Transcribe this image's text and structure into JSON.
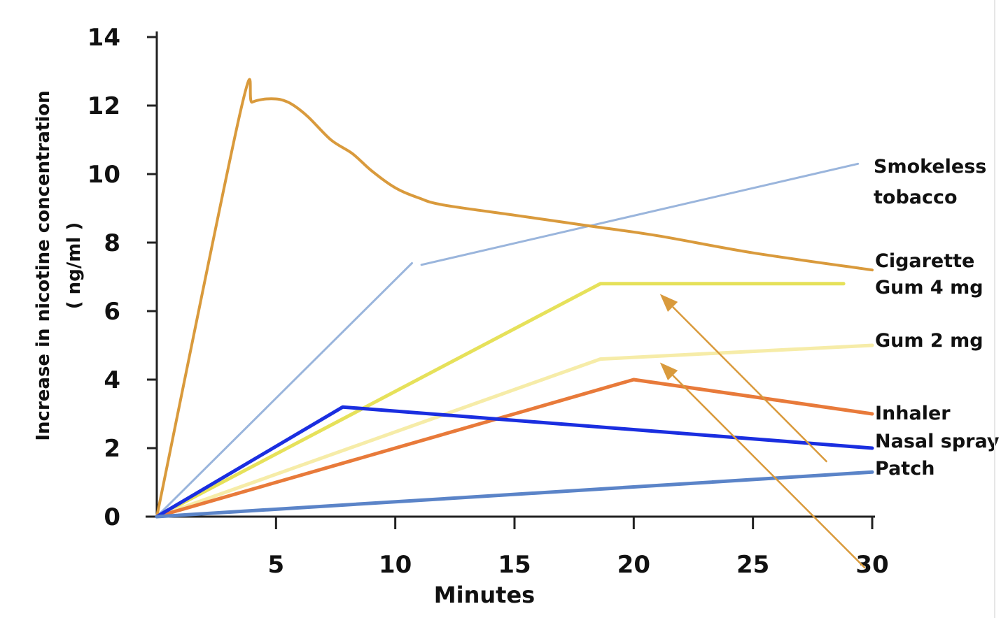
{
  "chart_data": {
    "type": "line",
    "xlabel": "Minutes",
    "ylabel": [
      "Increase in nicotine concentration",
      "( ng/ml )"
    ],
    "xlim": [
      0,
      30
    ],
    "ylim": [
      0,
      14
    ],
    "x_ticks": [
      5,
      10,
      15,
      20,
      25,
      30
    ],
    "y_ticks": [
      0,
      2,
      4,
      6,
      8,
      10,
      12,
      14
    ],
    "grid": false,
    "legend": "right, inline labels",
    "series": [
      {
        "name": "Smokeless tobacco",
        "color": "#9ab5dc",
        "segments": [
          [
            [
              0,
              0
            ],
            [
              10.7,
              7.4
            ]
          ],
          [
            [
              11.1,
              7.35
            ],
            [
              29.4,
              10.3
            ]
          ]
        ]
      },
      {
        "name": "Cigarette",
        "color": "#d99a3c",
        "points": [
          [
            0,
            0
          ],
          [
            3.5,
            11.8
          ],
          [
            4.0,
            12.1
          ],
          [
            4.8,
            12.2
          ],
          [
            5.5,
            12.1
          ],
          [
            6.3,
            11.7
          ],
          [
            7.3,
            11.0
          ],
          [
            8.2,
            10.6
          ],
          [
            9.0,
            10.1
          ],
          [
            10.0,
            9.6
          ],
          [
            11.0,
            9.3
          ],
          [
            12.0,
            9.1
          ],
          [
            15.0,
            8.8
          ],
          [
            18.0,
            8.5
          ],
          [
            21.0,
            8.2
          ],
          [
            25.0,
            7.7
          ],
          [
            30.0,
            7.2
          ]
        ]
      },
      {
        "name": "Gum 4 mg",
        "color": "#e6e15a",
        "points": [
          [
            0,
            0
          ],
          [
            18.6,
            6.8
          ],
          [
            28.8,
            6.8
          ]
        ]
      },
      {
        "name": "Gum 2 mg",
        "color": "#f6eca8",
        "points": [
          [
            0,
            0
          ],
          [
            18.6,
            4.6
          ],
          [
            30.0,
            5.0
          ]
        ]
      },
      {
        "name": "Inhaler",
        "color": "#e87a3a",
        "points": [
          [
            0,
            0
          ],
          [
            20.0,
            4.0
          ],
          [
            30.0,
            3.0
          ]
        ]
      },
      {
        "name": "Nasal spray",
        "color": "#1a2ee0",
        "points": [
          [
            0,
            0
          ],
          [
            7.8,
            3.2
          ],
          [
            30.0,
            2.0
          ]
        ]
      },
      {
        "name": "Patch",
        "color": "#5b84c8",
        "points": [
          [
            0,
            0
          ],
          [
            30.0,
            1.3
          ]
        ]
      }
    ],
    "legend_entries": [
      {
        "lines": [
          "Smokeless",
          "tobacco"
        ]
      },
      {
        "lines": [
          "Cigarette"
        ]
      },
      {
        "lines": [
          "Gum 4 mg"
        ]
      },
      {
        "lines": [
          "Gum 2 mg"
        ]
      },
      {
        "lines": [
          "Inhaler"
        ]
      },
      {
        "lines": [
          "Nasal spray"
        ]
      },
      {
        "lines": [
          "Patch"
        ]
      }
    ],
    "annotations": [
      {
        "type": "arrow",
        "color": "#d99a3c",
        "from": [
          28.1,
          1.6
        ],
        "to": [
          21.1,
          6.5
        ]
      },
      {
        "type": "arrow",
        "color": "#d99a3c",
        "from": [
          29.7,
          -1.5
        ],
        "to": [
          21.1,
          4.5
        ]
      }
    ]
  }
}
